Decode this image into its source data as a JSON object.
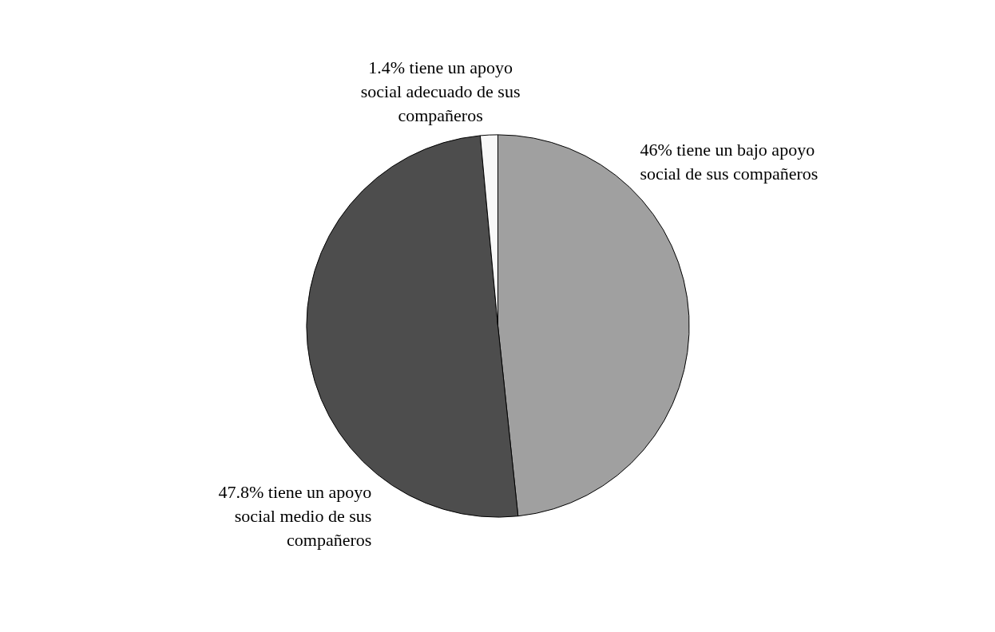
{
  "chart_data": {
    "type": "pie",
    "categories": [
      "46% tiene un bajo apoyo social de sus compañeros",
      "47.8% tiene un apoyo social medio de sus compañeros",
      "1.4% tiene un apoyo social adecuado de sus compañeros"
    ],
    "values": [
      46,
      47.8,
      1.4
    ],
    "colors": [
      "#a0a0a0",
      "#4d4d4d",
      "#f8f8f8"
    ]
  }
}
